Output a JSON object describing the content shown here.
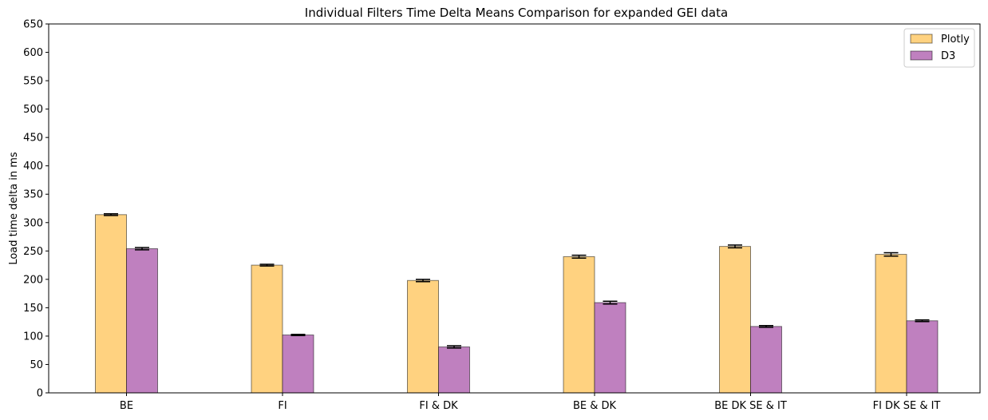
{
  "chart_data": {
    "type": "bar",
    "title": "Individual Filters Time Delta Means Comparison for expanded GEI data",
    "xlabel": "",
    "ylabel": "Load time delta in ms",
    "ylim": [
      0,
      650
    ],
    "yticks": [
      0,
      50,
      100,
      150,
      200,
      250,
      300,
      350,
      400,
      450,
      500,
      550,
      600,
      650
    ],
    "categories": [
      "BE",
      "FI",
      "FI & DK",
      "BE & DK",
      "BE DK SE & IT",
      "FI DK SE & IT"
    ],
    "series": [
      {
        "name": "Plotly",
        "color": "#ffd280",
        "values": [
          314,
          225,
          198,
          240,
          258,
          244
        ],
        "errors": [
          1.5,
          1.5,
          2,
          2.5,
          2.5,
          3
        ]
      },
      {
        "name": "D3",
        "color": "#bf80bf",
        "values": [
          254,
          102,
          81,
          159,
          117,
          127
        ],
        "errors": [
          2,
          1,
          2,
          2.5,
          1.5,
          1.5
        ]
      }
    ],
    "legend_position": "top-right",
    "grid": false,
    "error_bars": true
  }
}
